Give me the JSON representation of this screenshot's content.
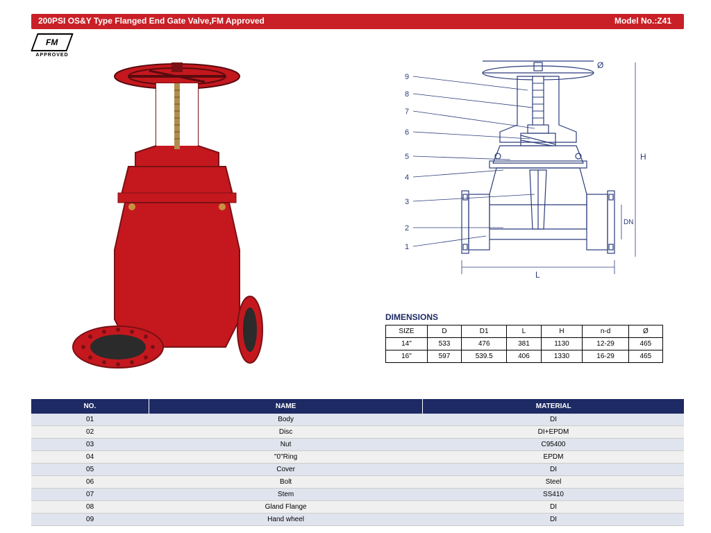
{
  "header": {
    "title": "200PSI OS&Y Type Flanged End Gate Valve,FM Approved",
    "model_label": "Model No.:Z41",
    "bar_bg": "#c92027",
    "text_color": "#ffffff"
  },
  "fm_badge": {
    "logo": "FM",
    "text": "APPROVED"
  },
  "product_photo": {
    "body_color": "#c4181e",
    "stem_color": "#b08d4f",
    "flange_bore_color": "#2b2b2b"
  },
  "diagram": {
    "stroke": "#2a3b7a",
    "callouts": [
      "9",
      "8",
      "7",
      "6",
      "5",
      "4",
      "3",
      "2",
      "1"
    ],
    "dims": [
      "Ø",
      "H",
      "DN",
      "L"
    ]
  },
  "dimensions": {
    "title": "DIMENSIONS",
    "title_color": "#1d2a64",
    "columns": [
      "SIZE",
      "D",
      "D1",
      "L",
      "H",
      "n-d",
      "Ø"
    ],
    "rows": [
      [
        "14\"",
        "533",
        "476",
        "381",
        "1130",
        "12-29",
        "465"
      ],
      [
        "16\"",
        "597",
        "539.5",
        "406",
        "1330",
        "16-29",
        "465"
      ]
    ]
  },
  "parts": {
    "header_bg": "#1d2a64",
    "header_text": "#ffffff",
    "columns": [
      "NO.",
      "NAME",
      "MATERIAL"
    ],
    "rows": [
      [
        "01",
        "Body",
        "DI"
      ],
      [
        "02",
        "Disc",
        "DI+EPDM"
      ],
      [
        "03",
        "Nut",
        "C95400"
      ],
      [
        "04",
        "\"0\"Ring",
        "EPDM"
      ],
      [
        "05",
        "Cover",
        "DI"
      ],
      [
        "06",
        "Bolt",
        "Steel"
      ],
      [
        "07",
        "Stem",
        "SS410"
      ],
      [
        "08",
        "Gland Flange",
        "DI"
      ],
      [
        "09",
        "Hand wheel",
        "DI"
      ]
    ]
  }
}
